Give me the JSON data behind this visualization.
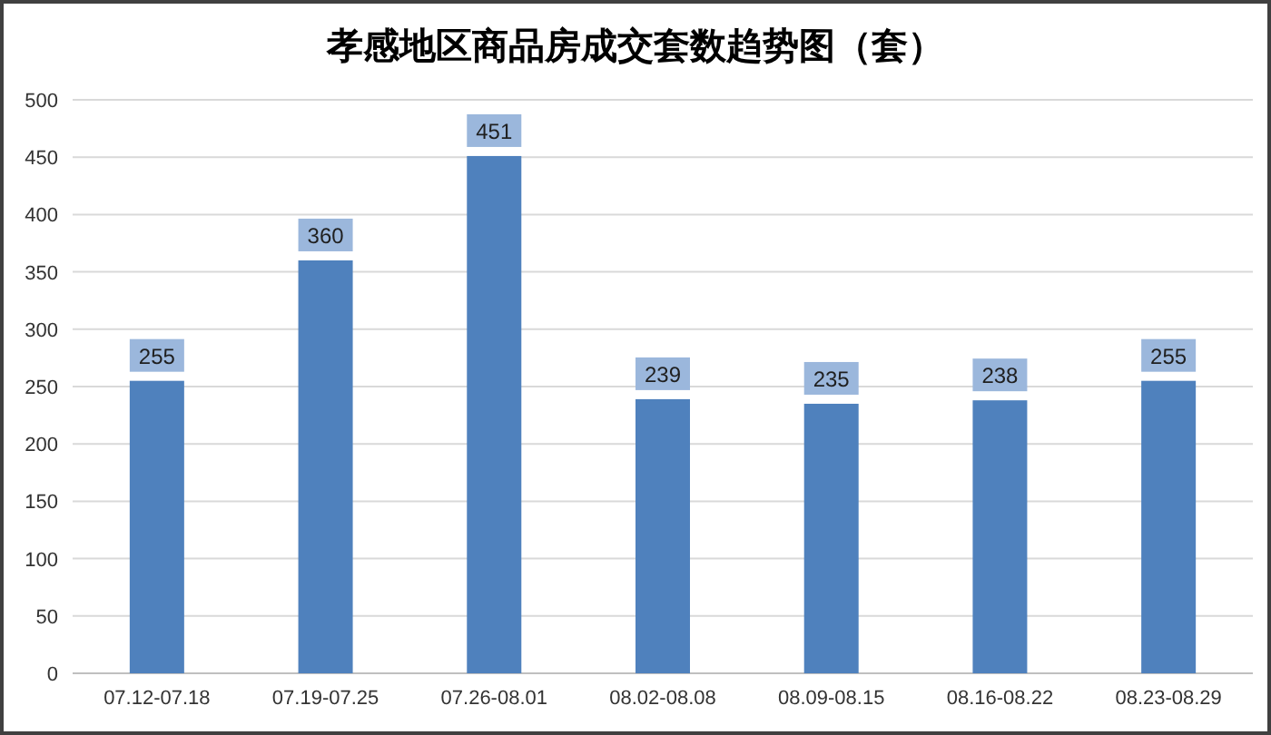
{
  "chart_data": {
    "type": "bar",
    "title": "孝感地区商品房成交套数趋势图（套）",
    "categories": [
      "07.12-07.18",
      "07.19-07.25",
      "07.26-08.01",
      "08.02-08.08",
      "08.09-08.15",
      "08.16-08.22",
      "08.23-08.29"
    ],
    "values": [
      255,
      360,
      451,
      239,
      235,
      238,
      255
    ],
    "color": "#4f81bd",
    "ylim": [
      0,
      500
    ],
    "yticks": [
      0,
      50,
      100,
      150,
      200,
      250,
      300,
      350,
      400,
      450,
      500
    ],
    "grid": "y",
    "data_labels": true
  }
}
